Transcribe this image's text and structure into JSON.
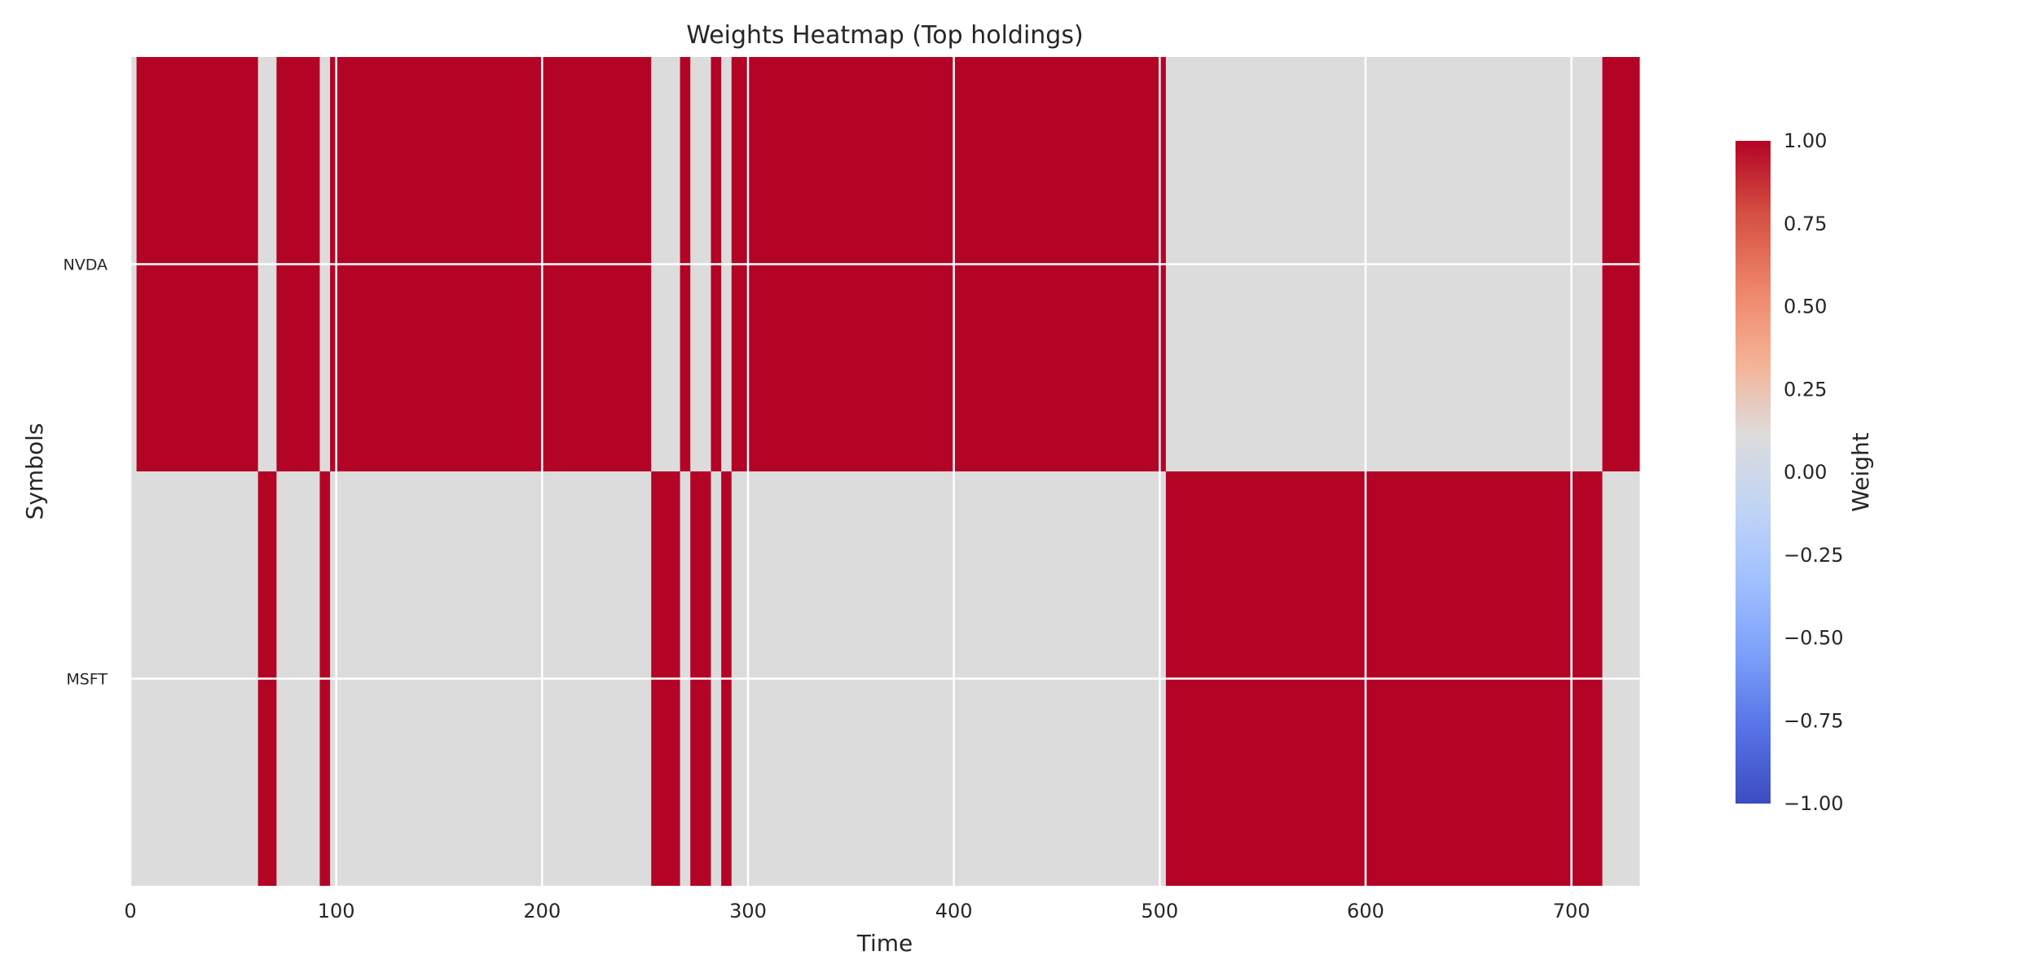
{
  "chart_data": {
    "type": "heatmap",
    "title": "Weights Heatmap (Top holdings)",
    "xlabel": "Time",
    "ylabel": "Symbols",
    "rows": [
      "NVDA",
      "MSFT"
    ],
    "xlim": [
      0,
      733
    ],
    "xticks": [
      0,
      100,
      200,
      300,
      400,
      500,
      600,
      700
    ],
    "colorbar": {
      "label": "Weight",
      "range": [
        -1.0,
        1.0
      ],
      "colormap": "coolwarm",
      "ticks": [
        "1.00",
        "0.75",
        "0.50",
        "0.25",
        "0.00",
        "−0.25",
        "−0.50",
        "−0.75",
        "−1.00"
      ]
    },
    "intervals": [
      {
        "start": 0,
        "end": 3,
        "NVDA": 0,
        "MSFT": 0
      },
      {
        "start": 3,
        "end": 62,
        "NVDA": 1,
        "MSFT": 0
      },
      {
        "start": 62,
        "end": 71,
        "NVDA": 0,
        "MSFT": 1
      },
      {
        "start": 71,
        "end": 92,
        "NVDA": 1,
        "MSFT": 0
      },
      {
        "start": 92,
        "end": 97,
        "NVDA": 0,
        "MSFT": 1
      },
      {
        "start": 97,
        "end": 253,
        "NVDA": 1,
        "MSFT": 0
      },
      {
        "start": 253,
        "end": 267,
        "NVDA": 0,
        "MSFT": 1
      },
      {
        "start": 267,
        "end": 272,
        "NVDA": 1,
        "MSFT": 0
      },
      {
        "start": 272,
        "end": 282,
        "NVDA": 0,
        "MSFT": 1
      },
      {
        "start": 282,
        "end": 287,
        "NVDA": 1,
        "MSFT": 0
      },
      {
        "start": 287,
        "end": 292,
        "NVDA": 0,
        "MSFT": 1
      },
      {
        "start": 292,
        "end": 503,
        "NVDA": 1,
        "MSFT": 0
      },
      {
        "start": 503,
        "end": 715,
        "NVDA": 0,
        "MSFT": 1
      },
      {
        "start": 715,
        "end": 733,
        "NVDA": 1,
        "MSFT": 0
      }
    ],
    "grid": true,
    "colors": {
      "high": "#b40426",
      "neutral": "#dddcdc",
      "low": "#3b4cc0",
      "grid": "#ffffff",
      "text": "#262626"
    },
    "colorbar_stops": [
      "#b40426",
      "#d55042",
      "#ee8468",
      "#f5b194",
      "#dddcdc",
      "#c0d4f5",
      "#a0bfff",
      "#7b9ff9",
      "#5672e6",
      "#3b4cc0"
    ]
  }
}
